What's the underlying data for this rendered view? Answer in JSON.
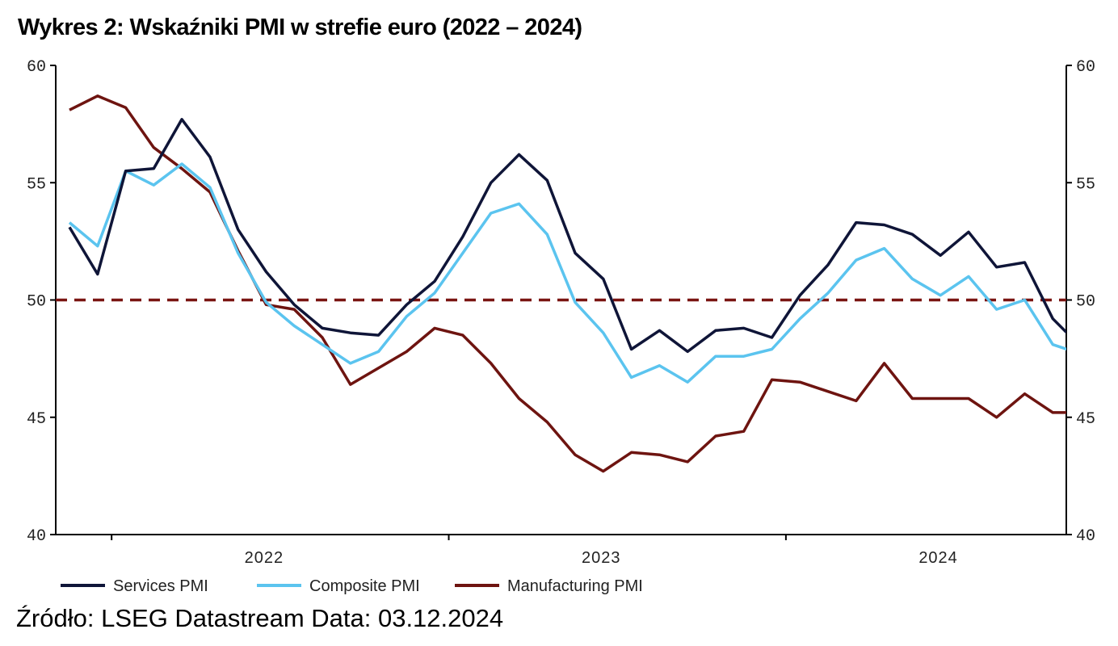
{
  "title": "Wykres 2: Wskaźniki PMI w strefie euro (2022 – 2024)",
  "source": "Źródło: LSEG Datastream Data: 03.12.2024",
  "colors": {
    "services": "#0f1538",
    "composite": "#5bc4ef",
    "manufacturing": "#6e1410",
    "reference_line": "#7a1512",
    "axis": "#000000"
  },
  "chart_data": {
    "type": "line",
    "x": [
      "2021-11",
      "2021-12",
      "2022-01",
      "2022-02",
      "2022-03",
      "2022-04",
      "2022-05",
      "2022-06",
      "2022-07",
      "2022-08",
      "2022-09",
      "2022-10",
      "2022-11",
      "2022-12",
      "2023-01",
      "2023-02",
      "2023-03",
      "2023-04",
      "2023-05",
      "2023-06",
      "2023-07",
      "2023-08",
      "2023-09",
      "2023-10",
      "2023-11",
      "2023-12",
      "2024-01",
      "2024-02",
      "2024-03",
      "2024-04",
      "2024-05",
      "2024-06",
      "2024-07",
      "2024-08",
      "2024-09",
      "2024-10",
      "2024-11"
    ],
    "x_ticks": [
      "2022",
      "2023",
      "2024"
    ],
    "ylim": [
      40,
      60
    ],
    "y_ticks": [
      "60",
      "55",
      "50",
      "45",
      "40"
    ],
    "y_ticks_right": [
      "60",
      "55",
      "50",
      "45",
      "40"
    ],
    "reference_line": 50,
    "legend_position": "bottom",
    "grid": false,
    "series": [
      {
        "name": "Services PMI",
        "key": "services",
        "values": [
          53.1,
          51.1,
          55.5,
          55.6,
          57.7,
          56.1,
          53.0,
          51.2,
          49.8,
          48.8,
          48.6,
          48.5,
          49.8,
          50.8,
          52.7,
          55.0,
          56.2,
          55.1,
          52.0,
          50.9,
          47.9,
          48.7,
          47.8,
          48.7,
          48.8,
          48.4,
          50.2,
          51.5,
          53.3,
          53.2,
          52.8,
          51.9,
          52.9,
          51.4,
          51.6,
          49.2,
          48.0
        ]
      },
      {
        "name": "Composite PMI",
        "key": "composite",
        "values": [
          53.3,
          52.3,
          55.5,
          54.9,
          55.8,
          54.8,
          52.0,
          49.9,
          48.9,
          48.1,
          47.3,
          47.8,
          49.3,
          50.3,
          52.0,
          53.7,
          54.1,
          52.8,
          49.9,
          48.6,
          46.7,
          47.2,
          46.5,
          47.6,
          47.6,
          47.9,
          49.2,
          50.3,
          51.7,
          52.2,
          50.9,
          50.2,
          51.0,
          49.6,
          50.0,
          48.1,
          47.7
        ]
      },
      {
        "name": "Manufacturing PMI",
        "key": "manufacturing",
        "values": [
          58.1,
          58.7,
          58.2,
          56.5,
          55.6,
          54.6,
          52.1,
          49.8,
          49.6,
          48.4,
          46.4,
          47.1,
          47.8,
          48.8,
          48.5,
          47.3,
          45.8,
          44.8,
          43.4,
          42.7,
          43.5,
          43.4,
          43.1,
          44.2,
          44.4,
          46.6,
          46.5,
          46.1,
          45.7,
          47.3,
          45.8,
          45.8,
          45.8,
          45.0,
          46.0,
          45.2,
          45.2
        ]
      }
    ]
  }
}
